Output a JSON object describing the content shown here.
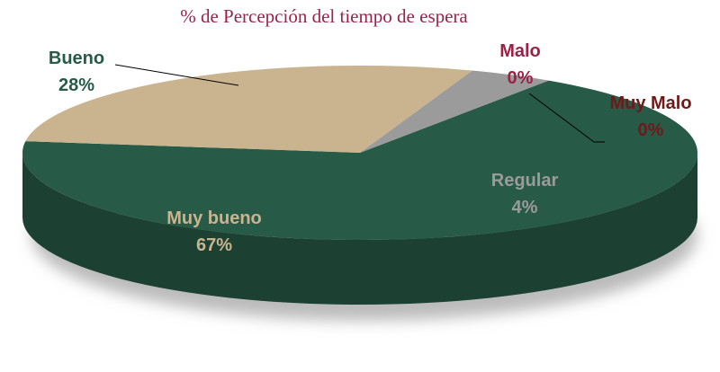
{
  "chart_data": {
    "type": "pie",
    "title": "% de Percepción del tiempo de espera",
    "categories": [
      "Muy bueno",
      "Bueno",
      "Regular",
      "Malo",
      "Muy Malo"
    ],
    "values": [
      67,
      28,
      4,
      0,
      0
    ],
    "value_labels": [
      "67%",
      "28%",
      "4%",
      "0%",
      "0%"
    ],
    "colors": [
      "#275a47",
      "#c9b48f",
      "#9b9b9b",
      "#9b2247",
      "#6f1a1a"
    ],
    "label_colors": [
      "#c9b48f",
      "#275a47",
      "#9b9b9b",
      "#9b2247",
      "#6f1a1a"
    ]
  }
}
